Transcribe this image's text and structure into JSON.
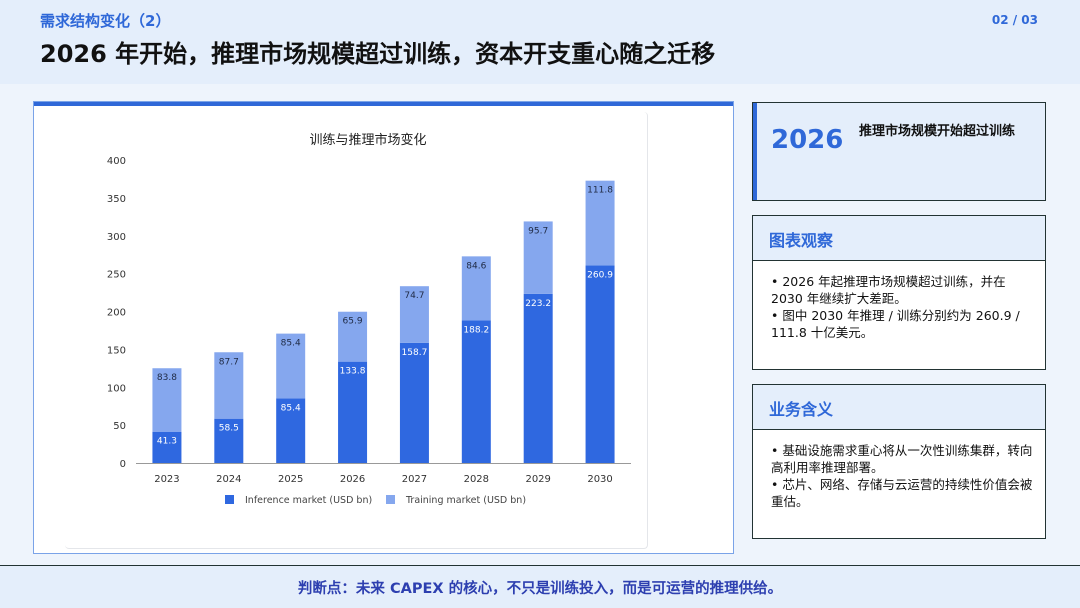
{
  "header": {
    "kicker": "需求结构变化（2）",
    "page": "02 / 03",
    "title": "2026 年开始，推理市场规模超过训练，资本开支重心随之迁移"
  },
  "chart_data": {
    "type": "bar",
    "stacked": true,
    "title": "训练与推理市场变化",
    "categories": [
      "2023",
      "2024",
      "2025",
      "2026",
      "2027",
      "2028",
      "2029",
      "2030"
    ],
    "series": [
      {
        "name": "Inference market (USD bn)",
        "color": "#2f68e0",
        "values": [
          41.3,
          58.5,
          85.4,
          133.8,
          158.7,
          188.2,
          223.2,
          260.9
        ]
      },
      {
        "name": "Training market (USD bn)",
        "color": "#85a7ee",
        "values": [
          83.8,
          87.7,
          85.4,
          65.9,
          74.7,
          84.6,
          95.7,
          111.8
        ]
      }
    ],
    "ylim": [
      0,
      400
    ],
    "yticks": [
      0,
      50,
      100,
      150,
      200,
      250,
      300,
      350,
      400
    ],
    "grid": false,
    "legend_position": "bottom"
  },
  "sidebar": {
    "year": "2026",
    "year_text": "推理市场规模开始超过训练",
    "observe": {
      "title": "图表观察",
      "items": [
        "• 2026 年起推理市场规模超过训练，并在 2030 年继续扩大差距。",
        "• 图中 2030 年推理 / 训练分别约为 260.9 / 111.8 十亿美元。"
      ]
    },
    "implication": {
      "title": "业务含义",
      "items": [
        "• 基础设施需求重心将从一次性训练集群，转向高利用率推理部署。",
        "• 芯片、网络、存储与云运营的持续性价值会被重估。"
      ]
    }
  },
  "footer": {
    "text": "判断点：未来 CAPEX 的核心，不只是训练投入，而是可运营的推理供给。"
  },
  "colors": {
    "accent": "#2f68d8",
    "light_panel": "#e4eefb",
    "footer_text": "#2d3fb0"
  }
}
